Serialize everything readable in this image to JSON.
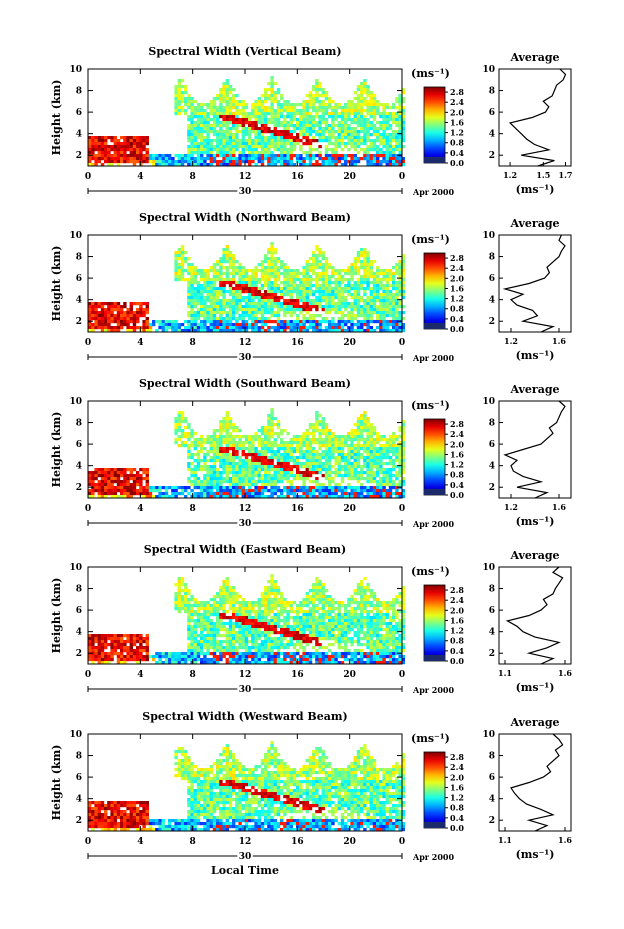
{
  "figure": {
    "xlabel": "Local Time",
    "colorbar_unit": "(ms⁻¹)",
    "colorbar_ticks": [
      "2.8",
      "2.4",
      "2.0",
      "1.6",
      "1.2",
      "0.8",
      "0.4",
      "0.0"
    ],
    "date_marker": "30",
    "date_suffix": "Apr 2000",
    "avg_title": "Average",
    "avg_unit": "(ms⁻¹)"
  },
  "chart_data": [
    {
      "type": "heatmap",
      "title": "Spectral Width (Vertical Beam)",
      "ylabel": "Height (km)",
      "xlabel": "",
      "x_ticks": [
        "0",
        "4",
        "8",
        "12",
        "16",
        "20",
        "0"
      ],
      "y_ticks": [
        "2",
        "4",
        "6",
        "8",
        "10"
      ],
      "xlim": [
        0,
        24
      ],
      "ylim": [
        1,
        10
      ],
      "colorbar": {
        "min": 0.0,
        "max": 3.0,
        "unit": "ms-1"
      },
      "profile": {
        "title": "Average",
        "xlabel": "(ms-1)",
        "x_ticks": [
          "1.2",
          "1.5",
          "1.7"
        ],
        "xlim": [
          1.1,
          1.75
        ],
        "heights": [
          1.0,
          1.5,
          2.0,
          2.5,
          3.0,
          3.5,
          4.0,
          4.5,
          5.0,
          5.5,
          6.0,
          6.5,
          7.0,
          7.5,
          8.0,
          8.5,
          9.0,
          9.5,
          10.0
        ],
        "values": [
          1.45,
          1.6,
          1.3,
          1.55,
          1.42,
          1.35,
          1.3,
          1.25,
          1.2,
          1.4,
          1.52,
          1.55,
          1.5,
          1.58,
          1.6,
          1.62,
          1.68,
          1.7,
          1.65
        ]
      }
    },
    {
      "type": "heatmap",
      "title": "Spectral Width (Northward Beam)",
      "ylabel": "Height (km)",
      "xlabel": "",
      "x_ticks": [
        "0",
        "4",
        "8",
        "12",
        "16",
        "20",
        "0"
      ],
      "y_ticks": [
        "2",
        "4",
        "6",
        "8",
        "10"
      ],
      "xlim": [
        0,
        24
      ],
      "ylim": [
        1,
        10
      ],
      "colorbar": {
        "min": 0.0,
        "max": 3.0,
        "unit": "ms-1"
      },
      "profile": {
        "title": "Average",
        "xlabel": "(ms-1)",
        "x_ticks": [
          "1.2",
          "1.6"
        ],
        "xlim": [
          1.1,
          1.7
        ],
        "heights": [
          1.0,
          1.5,
          2.0,
          2.5,
          3.0,
          3.5,
          4.0,
          4.5,
          5.0,
          5.5,
          6.0,
          6.5,
          7.0,
          7.5,
          8.0,
          8.5,
          9.0,
          9.5,
          10.0
        ],
        "values": [
          1.45,
          1.55,
          1.3,
          1.42,
          1.38,
          1.25,
          1.2,
          1.3,
          1.15,
          1.35,
          1.48,
          1.52,
          1.5,
          1.55,
          1.6,
          1.62,
          1.65,
          1.6,
          1.62
        ]
      }
    },
    {
      "type": "heatmap",
      "title": "Spectral Width (Southward Beam)",
      "ylabel": "Height (km)",
      "xlabel": "",
      "x_ticks": [
        "0",
        "4",
        "8",
        "12",
        "16",
        "20",
        "0"
      ],
      "y_ticks": [
        "2",
        "4",
        "6",
        "8",
        "10"
      ],
      "xlim": [
        0,
        24
      ],
      "ylim": [
        1,
        10
      ],
      "colorbar": {
        "min": 0.0,
        "max": 3.0,
        "unit": "ms-1"
      },
      "profile": {
        "title": "Average",
        "xlabel": "(ms-1)",
        "x_ticks": [
          "1.2",
          "1.6"
        ],
        "xlim": [
          1.1,
          1.7
        ],
        "heights": [
          1.0,
          1.5,
          2.0,
          2.5,
          3.0,
          3.5,
          4.0,
          4.5,
          5.0,
          5.5,
          6.0,
          6.5,
          7.0,
          7.5,
          8.0,
          8.5,
          9.0,
          9.5,
          10.0
        ],
        "values": [
          1.4,
          1.5,
          1.25,
          1.45,
          1.3,
          1.22,
          1.2,
          1.25,
          1.15,
          1.3,
          1.45,
          1.5,
          1.55,
          1.52,
          1.58,
          1.6,
          1.62,
          1.65,
          1.6
        ]
      }
    },
    {
      "type": "heatmap",
      "title": "Spectral Width (Eastward Beam)",
      "ylabel": "Height (km)",
      "xlabel": "",
      "x_ticks": [
        "0",
        "4",
        "8",
        "12",
        "16",
        "20",
        "0"
      ],
      "y_ticks": [
        "2",
        "4",
        "6",
        "8",
        "10"
      ],
      "xlim": [
        0,
        24
      ],
      "ylim": [
        1,
        10
      ],
      "colorbar": {
        "min": 0.0,
        "max": 3.0,
        "unit": "ms-1"
      },
      "profile": {
        "title": "Average",
        "xlabel": "(ms-1)",
        "x_ticks": [
          "1.1",
          "1.6"
        ],
        "xlim": [
          1.05,
          1.65
        ],
        "heights": [
          1.0,
          1.5,
          2.0,
          2.5,
          3.0,
          3.5,
          4.0,
          4.5,
          5.0,
          5.5,
          6.0,
          6.5,
          7.0,
          7.5,
          8.0,
          8.5,
          9.0,
          9.5,
          10.0
        ],
        "values": [
          1.4,
          1.5,
          1.3,
          1.45,
          1.55,
          1.35,
          1.25,
          1.2,
          1.12,
          1.3,
          1.4,
          1.45,
          1.42,
          1.5,
          1.52,
          1.55,
          1.58,
          1.5,
          1.55
        ]
      }
    },
    {
      "type": "heatmap",
      "title": "Spectral Width (Westward Beam)",
      "ylabel": "Height (km)",
      "xlabel": "Local Time",
      "x_ticks": [
        "0",
        "4",
        "8",
        "12",
        "16",
        "20",
        "0"
      ],
      "y_ticks": [
        "2",
        "4",
        "6",
        "8",
        "10"
      ],
      "xlim": [
        0,
        24
      ],
      "ylim": [
        1,
        10
      ],
      "colorbar": {
        "min": 0.0,
        "max": 3.0,
        "unit": "ms-1"
      },
      "profile": {
        "title": "Average",
        "xlabel": "(ms-1)",
        "x_ticks": [
          "1.1",
          "1.6"
        ],
        "xlim": [
          1.05,
          1.65
        ],
        "heights": [
          1.0,
          1.5,
          2.0,
          2.5,
          3.0,
          3.5,
          4.0,
          4.5,
          5.0,
          5.5,
          6.0,
          6.5,
          7.0,
          7.5,
          8.0,
          8.5,
          9.0,
          9.5,
          10.0
        ],
        "values": [
          1.35,
          1.45,
          1.3,
          1.5,
          1.4,
          1.28,
          1.22,
          1.18,
          1.15,
          1.3,
          1.42,
          1.48,
          1.45,
          1.5,
          1.55,
          1.52,
          1.58,
          1.55,
          1.5
        ]
      }
    }
  ]
}
